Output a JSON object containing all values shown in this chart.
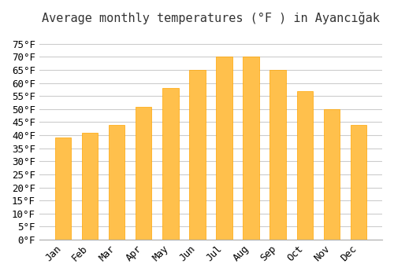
{
  "title": "Average monthly temperatures (°F ) in Ayancığak",
  "months": [
    "Jan",
    "Feb",
    "Mar",
    "Apr",
    "May",
    "Jun",
    "Jul",
    "Aug",
    "Sep",
    "Oct",
    "Nov",
    "Dec"
  ],
  "values": [
    39,
    41,
    44,
    51,
    58,
    65,
    70,
    70,
    65,
    57,
    50,
    44
  ],
  "bar_color_main": "#FFC04C",
  "bar_color_edge": "#FFA500",
  "background_color": "#ffffff",
  "grid_color": "#cccccc",
  "ylim": [
    0,
    80
  ],
  "yticks": [
    0,
    5,
    10,
    15,
    20,
    25,
    30,
    35,
    40,
    45,
    50,
    55,
    60,
    65,
    70,
    75
  ],
  "title_fontsize": 11,
  "tick_fontsize": 9
}
